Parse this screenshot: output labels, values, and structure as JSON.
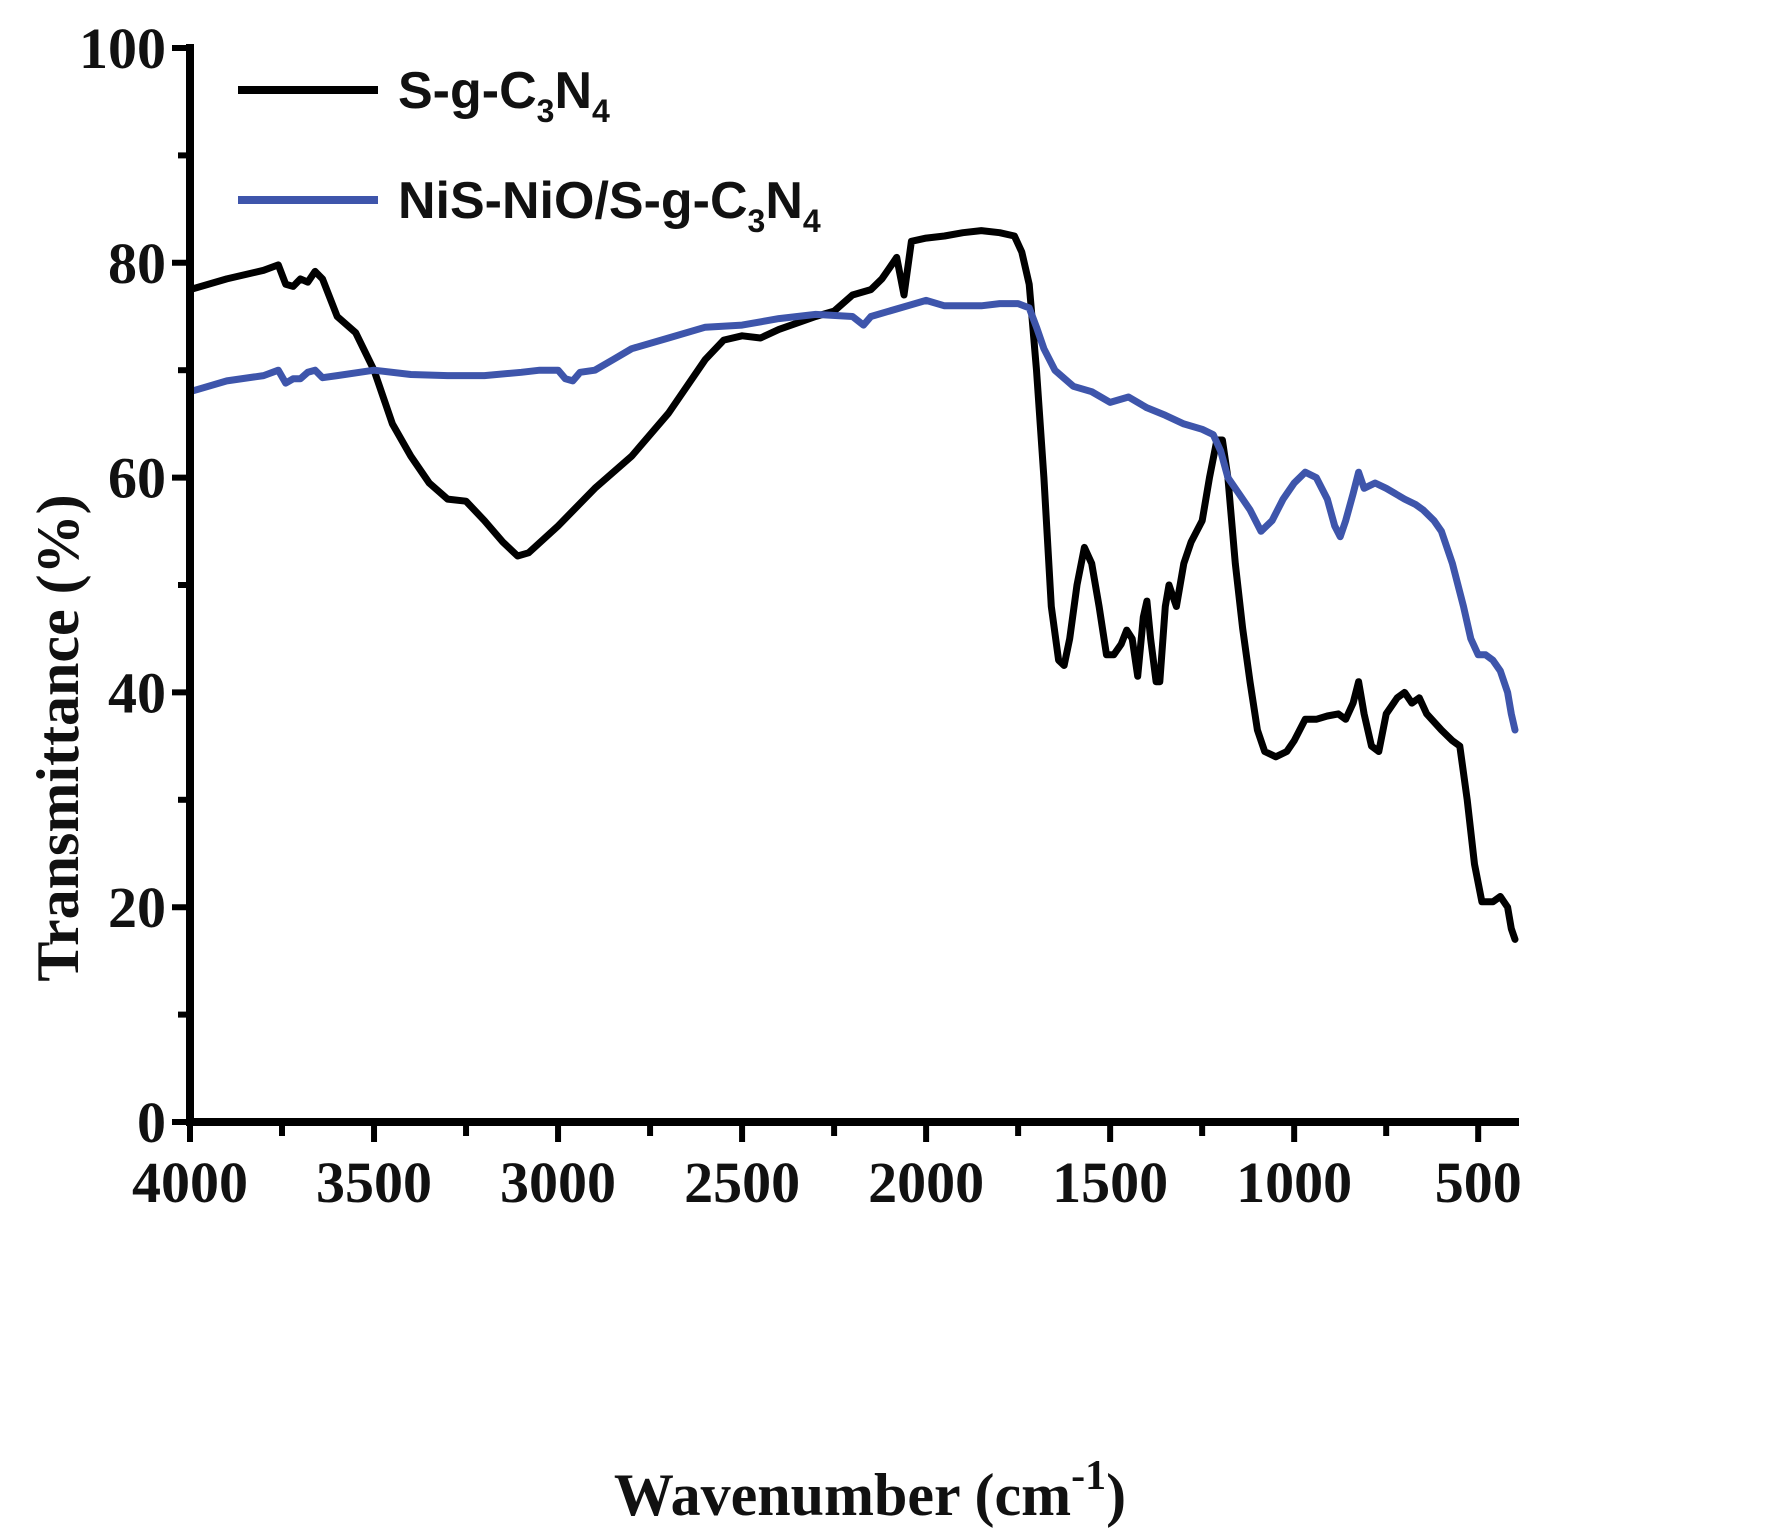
{
  "chart_data": {
    "type": "line",
    "title": "",
    "xlabel": "Wavenumber",
    "xlabel_unit_open": "(cm",
    "xlabel_unit_sup": "-1",
    "xlabel_unit_close": ")",
    "ylabel": "Transmittance (%)",
    "xlim": [
      4000,
      400
    ],
    "ylim": [
      0,
      100
    ],
    "x_reversed": true,
    "grid": false,
    "legend_position": "top-left",
    "x_ticks": [
      4000,
      3500,
      3000,
      2500,
      2000,
      1500,
      1000,
      500
    ],
    "y_ticks": [
      0,
      20,
      40,
      60,
      80,
      100
    ],
    "series": [
      {
        "name": "S-g-C3N4",
        "legend_parts": [
          "S-g-C",
          "3",
          "N",
          "4"
        ],
        "color": "#000000",
        "points": [
          [
            4000,
            77.5
          ],
          [
            3900,
            78.5
          ],
          [
            3800,
            79.3
          ],
          [
            3760,
            79.8
          ],
          [
            3740,
            78
          ],
          [
            3720,
            77.8
          ],
          [
            3700,
            78.5
          ],
          [
            3680,
            78.2
          ],
          [
            3660,
            79.2
          ],
          [
            3640,
            78.5
          ],
          [
            3600,
            75
          ],
          [
            3550,
            73.5
          ],
          [
            3500,
            70
          ],
          [
            3450,
            65
          ],
          [
            3400,
            62
          ],
          [
            3350,
            59.5
          ],
          [
            3300,
            58
          ],
          [
            3250,
            57.8
          ],
          [
            3200,
            56
          ],
          [
            3150,
            54
          ],
          [
            3110,
            52.7
          ],
          [
            3080,
            53
          ],
          [
            3000,
            55.5
          ],
          [
            2900,
            59
          ],
          [
            2800,
            62
          ],
          [
            2700,
            66
          ],
          [
            2600,
            71
          ],
          [
            2550,
            72.8
          ],
          [
            2500,
            73.2
          ],
          [
            2450,
            73
          ],
          [
            2400,
            73.8
          ],
          [
            2300,
            75
          ],
          [
            2250,
            75.5
          ],
          [
            2200,
            77
          ],
          [
            2150,
            77.5
          ],
          [
            2120,
            78.5
          ],
          [
            2100,
            79.5
          ],
          [
            2080,
            80.5
          ],
          [
            2060,
            77
          ],
          [
            2040,
            82
          ],
          [
            2000,
            82.3
          ],
          [
            1950,
            82.5
          ],
          [
            1900,
            82.8
          ],
          [
            1850,
            83
          ],
          [
            1800,
            82.8
          ],
          [
            1760,
            82.5
          ],
          [
            1740,
            81
          ],
          [
            1720,
            78
          ],
          [
            1700,
            70
          ],
          [
            1680,
            60
          ],
          [
            1660,
            48
          ],
          [
            1640,
            43
          ],
          [
            1625,
            42.5
          ],
          [
            1610,
            45
          ],
          [
            1590,
            50
          ],
          [
            1570,
            53.5
          ],
          [
            1550,
            52
          ],
          [
            1530,
            48
          ],
          [
            1510,
            43.5
          ],
          [
            1490,
            43.5
          ],
          [
            1470,
            44.5
          ],
          [
            1455,
            45.8
          ],
          [
            1440,
            45
          ],
          [
            1425,
            41.5
          ],
          [
            1410,
            47
          ],
          [
            1400,
            48.5
          ],
          [
            1390,
            45
          ],
          [
            1375,
            41
          ],
          [
            1365,
            41
          ],
          [
            1350,
            48
          ],
          [
            1340,
            50
          ],
          [
            1320,
            48
          ],
          [
            1300,
            52
          ],
          [
            1280,
            54
          ],
          [
            1250,
            56
          ],
          [
            1230,
            60
          ],
          [
            1210,
            63.5
          ],
          [
            1195,
            63.5
          ],
          [
            1180,
            60
          ],
          [
            1160,
            52
          ],
          [
            1140,
            46
          ],
          [
            1120,
            41
          ],
          [
            1100,
            36.5
          ],
          [
            1080,
            34.5
          ],
          [
            1050,
            34
          ],
          [
            1020,
            34.5
          ],
          [
            1000,
            35.5
          ],
          [
            970,
            37.5
          ],
          [
            940,
            37.5
          ],
          [
            910,
            37.8
          ],
          [
            880,
            38
          ],
          [
            860,
            37.5
          ],
          [
            840,
            39
          ],
          [
            825,
            41
          ],
          [
            810,
            38
          ],
          [
            790,
            35
          ],
          [
            770,
            34.5
          ],
          [
            750,
            38
          ],
          [
            720,
            39.5
          ],
          [
            700,
            40
          ],
          [
            680,
            39
          ],
          [
            660,
            39.5
          ],
          [
            640,
            38
          ],
          [
            600,
            36.5
          ],
          [
            570,
            35.5
          ],
          [
            550,
            35
          ],
          [
            530,
            30
          ],
          [
            510,
            24
          ],
          [
            490,
            20.5
          ],
          [
            460,
            20.5
          ],
          [
            440,
            21
          ],
          [
            420,
            20
          ],
          [
            410,
            18
          ],
          [
            400,
            17
          ]
        ]
      },
      {
        "name": "NiS-NiO/S-g-C3N4",
        "legend_parts": [
          "NiS-NiO/S-g-C",
          "3",
          "N",
          "4"
        ],
        "color": "#3e55ab",
        "points": [
          [
            4000,
            68
          ],
          [
            3900,
            69
          ],
          [
            3800,
            69.5
          ],
          [
            3760,
            70
          ],
          [
            3740,
            68.8
          ],
          [
            3720,
            69.2
          ],
          [
            3700,
            69.2
          ],
          [
            3680,
            69.8
          ],
          [
            3660,
            70
          ],
          [
            3640,
            69.3
          ],
          [
            3600,
            69.5
          ],
          [
            3500,
            70
          ],
          [
            3400,
            69.6
          ],
          [
            3300,
            69.5
          ],
          [
            3200,
            69.5
          ],
          [
            3100,
            69.8
          ],
          [
            3050,
            70
          ],
          [
            3000,
            70
          ],
          [
            2980,
            69.2
          ],
          [
            2960,
            69
          ],
          [
            2940,
            69.8
          ],
          [
            2900,
            70
          ],
          [
            2850,
            71
          ],
          [
            2800,
            72
          ],
          [
            2700,
            73
          ],
          [
            2600,
            74
          ],
          [
            2500,
            74.2
          ],
          [
            2400,
            74.8
          ],
          [
            2300,
            75.2
          ],
          [
            2200,
            75
          ],
          [
            2170,
            74.2
          ],
          [
            2150,
            75
          ],
          [
            2100,
            75.5
          ],
          [
            2050,
            76
          ],
          [
            2000,
            76.5
          ],
          [
            1950,
            76
          ],
          [
            1900,
            76
          ],
          [
            1850,
            76
          ],
          [
            1800,
            76.2
          ],
          [
            1750,
            76.2
          ],
          [
            1720,
            75.8
          ],
          [
            1700,
            74
          ],
          [
            1680,
            72
          ],
          [
            1650,
            70
          ],
          [
            1600,
            68.5
          ],
          [
            1550,
            68
          ],
          [
            1500,
            67
          ],
          [
            1450,
            67.5
          ],
          [
            1400,
            66.5
          ],
          [
            1350,
            65.8
          ],
          [
            1300,
            65
          ],
          [
            1250,
            64.5
          ],
          [
            1220,
            64
          ],
          [
            1200,
            62.5
          ],
          [
            1180,
            60
          ],
          [
            1150,
            58.5
          ],
          [
            1120,
            57
          ],
          [
            1090,
            55
          ],
          [
            1060,
            56
          ],
          [
            1030,
            58
          ],
          [
            1000,
            59.5
          ],
          [
            970,
            60.5
          ],
          [
            940,
            60
          ],
          [
            910,
            58
          ],
          [
            890,
            55.5
          ],
          [
            875,
            54.5
          ],
          [
            860,
            56
          ],
          [
            840,
            58.5
          ],
          [
            825,
            60.5
          ],
          [
            810,
            59
          ],
          [
            780,
            59.5
          ],
          [
            750,
            59
          ],
          [
            700,
            58
          ],
          [
            670,
            57.5
          ],
          [
            650,
            57
          ],
          [
            620,
            56
          ],
          [
            600,
            55
          ],
          [
            570,
            52
          ],
          [
            540,
            48
          ],
          [
            520,
            45
          ],
          [
            500,
            43.5
          ],
          [
            480,
            43.5
          ],
          [
            460,
            43
          ],
          [
            440,
            42
          ],
          [
            420,
            40
          ],
          [
            410,
            38
          ],
          [
            400,
            36.5
          ]
        ]
      }
    ]
  }
}
